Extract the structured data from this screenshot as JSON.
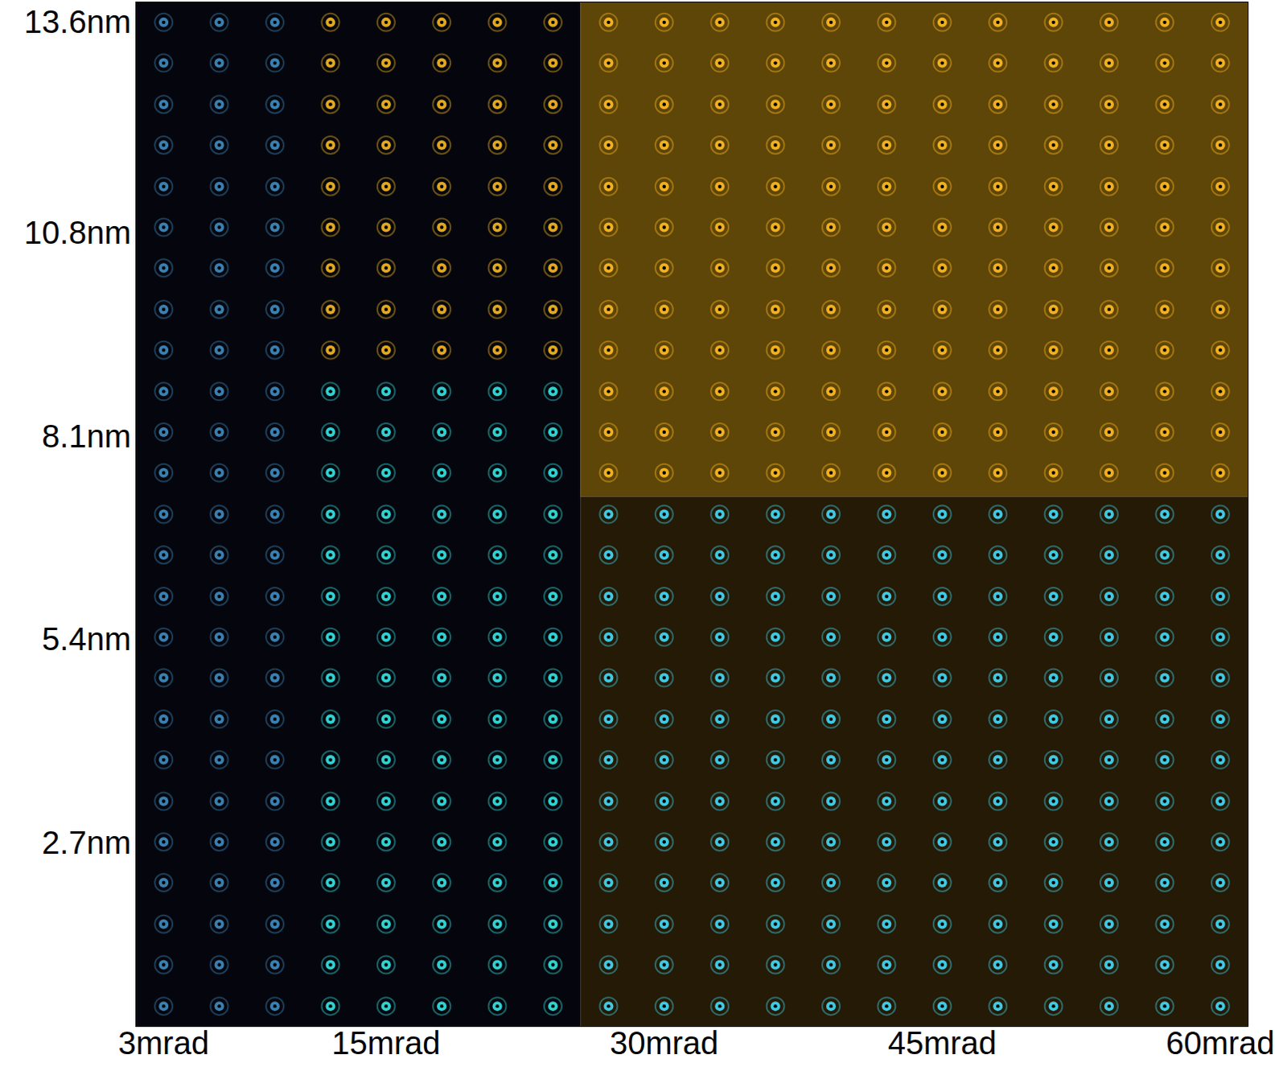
{
  "chart_data": {
    "type": "image",
    "xlim": [
      1.5,
      61.5
    ],
    "ylim": [
      0.27,
      13.87
    ],
    "xticks": [
      {
        "value": 3,
        "label": "3mrad"
      },
      {
        "value": 15,
        "label": "15mrad"
      },
      {
        "value": 30,
        "label": "30mrad"
      },
      {
        "value": 45,
        "label": "45mrad"
      },
      {
        "value": 60,
        "label": "60mrad"
      }
    ],
    "yticks": [
      {
        "value": 2.7,
        "label": "2.7nm"
      },
      {
        "value": 5.4,
        "label": "5.4nm"
      },
      {
        "value": 8.1,
        "label": "8.1nm"
      },
      {
        "value": 10.8,
        "label": "10.8nm"
      },
      {
        "value": 13.6,
        "label": "13.6nm"
      }
    ],
    "grid": false,
    "columns_x": [
      3,
      6,
      9,
      12,
      15,
      18,
      21,
      24,
      27,
      30,
      33,
      36,
      39,
      42,
      45,
      48,
      51,
      54,
      57,
      60
    ],
    "rows_y": [
      0.54,
      1.09,
      1.63,
      2.18,
      2.72,
      3.26,
      3.81,
      4.35,
      4.9,
      5.44,
      5.98,
      6.53,
      7.07,
      7.62,
      8.16,
      8.7,
      9.25,
      9.79,
      10.34,
      10.88,
      11.42,
      11.97,
      12.51,
      13.06,
      13.6
    ],
    "regions": [
      {
        "x": [
          1.5,
          25.5
        ],
        "y": [
          0.27,
          13.87
        ],
        "color": "#05060d"
      },
      {
        "x": [
          25.5,
          61.5
        ],
        "y": [
          7.3,
          13.87
        ],
        "color": "#5e4508"
      },
      {
        "x": [
          25.5,
          61.5
        ],
        "y": [
          0.27,
          7.3
        ],
        "color": "#241a05"
      }
    ],
    "spots": [
      {
        "x": [
          3,
          9
        ],
        "y": [
          0.54,
          13.6
        ],
        "color": "#3a7fb0"
      },
      {
        "x": [
          12,
          24
        ],
        "y": [
          9.25,
          13.6
        ],
        "color": "#e0a820"
      },
      {
        "x": [
          12,
          24
        ],
        "y": [
          0.54,
          8.7
        ],
        "color": "#30d0d0"
      },
      {
        "x": [
          27,
          60
        ],
        "y": [
          7.62,
          13.6
        ],
        "color": "#f0b020"
      },
      {
        "x": [
          27,
          60
        ],
        "y": [
          0.54,
          7.07
        ],
        "color": "#40c8e0"
      }
    ]
  }
}
